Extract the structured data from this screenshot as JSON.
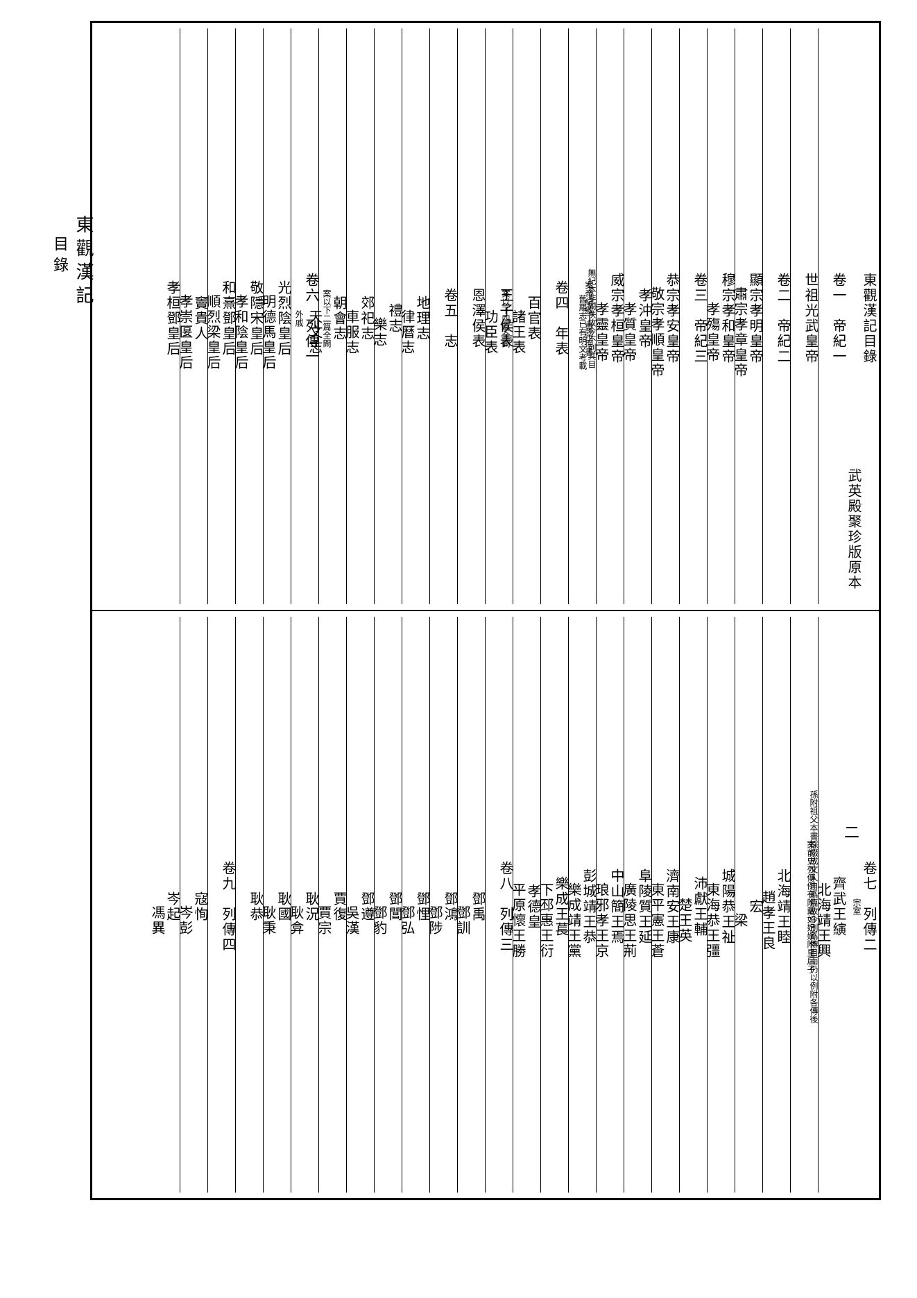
{
  "side_title_main": "東觀漢記",
  "side_title_sub": "目錄",
  "page_number": "二",
  "upper": {
    "columns": [
      {
        "cells": [
          {
            "t": "東觀漢記目錄",
            "cls": ""
          },
          {
            "t": "武英殿聚珍版原本",
            "cls": "edition"
          }
        ]
      },
      {
        "cells": [
          {
            "t": "卷一　帝紀一",
            "cls": ""
          }
        ]
      },
      {
        "cells": [
          {
            "t": "世祖光武皇帝",
            "cls": ""
          }
        ]
      },
      {
        "cells": [
          {
            "t": "卷二　帝紀二",
            "cls": ""
          }
        ]
      },
      {
        "cells": [
          {
            "t": "顯宗孝明皇帝",
            "cls": ""
          },
          {
            "t": "肅宗孝章皇帝",
            "cls": "second"
          }
        ]
      },
      {
        "cells": [
          {
            "t": "穆宗孝和皇帝",
            "cls": ""
          },
          {
            "t": "孝殤皇帝",
            "cls": "second"
          }
        ]
      },
      {
        "cells": [
          {
            "t": "卷三　帝紀三",
            "cls": ""
          }
        ]
      },
      {
        "cells": [
          {
            "t": "恭宗孝安皇帝",
            "cls": ""
          },
          {
            "t": "敬宗孝順皇帝",
            "cls": "second"
          }
        ]
      },
      {
        "cells": [
          {
            "t": "孝沖皇帝",
            "cls": ""
          },
          {
            "t": "孝質皇帝",
            "cls": "second"
          }
        ]
      },
      {
        "cells": [
          {
            "t": "威宗孝桓皇帝",
            "cls": ""
          },
          {
            "t": "孝靈皇帝",
            "cls": "second"
          },
          {
            "t": "案帝紀敘丁靈帝而書",
            "cls": "small"
          }
        ]
      },
      {
        "cells": [
          {
            "t": "無紀本非闕佚故今不列其目",
            "cls": "small"
          },
          {
            "t": "舊羅志已有明文考載",
            "cls": "small second"
          }
        ]
      },
      {
        "cells": [
          {
            "t": "卷四　年表",
            "cls": ""
          }
        ]
      },
      {
        "cells": [
          {
            "t": "百官表",
            "cls": ""
          },
          {
            "t": "諸王表",
            "cls": "second"
          },
          {
            "t": "案以下四篇全闕",
            "cls": "small"
          }
        ]
      },
      {
        "cells": [
          {
            "t": "王子侯表",
            "cls": ""
          },
          {
            "t": "功臣表",
            "cls": "second"
          }
        ]
      },
      {
        "cells": [
          {
            "t": "恩澤侯表",
            "cls": ""
          }
        ]
      },
      {
        "cells": [
          {
            "t": "卷五　志",
            "cls": ""
          }
        ]
      },
      {
        "cells": [
          {
            "t": "地理志",
            "cls": ""
          },
          {
            "t": "律曆志",
            "cls": "second"
          }
        ]
      },
      {
        "cells": [
          {
            "t": "禮志",
            "cls": ""
          },
          {
            "t": "樂志",
            "cls": "second"
          }
        ]
      },
      {
        "cells": [
          {
            "t": "郊祀志",
            "cls": ""
          },
          {
            "t": "車服志",
            "cls": "second"
          }
        ]
      },
      {
        "cells": [
          {
            "t": "朝會志",
            "cls": ""
          },
          {
            "t": "案以下二篇全闕",
            "cls": "small"
          },
          {
            "t": "天文志",
            "cls": "second"
          }
        ]
      },
      {
        "cells": [
          {
            "t": "卷六　列傳一",
            "cls": ""
          },
          {
            "t": "外戚",
            "cls": "small"
          }
        ]
      },
      {
        "cells": [
          {
            "t": "光烈陰皇后",
            "cls": ""
          },
          {
            "t": "明德馬皇后",
            "cls": "second"
          }
        ]
      },
      {
        "cells": [
          {
            "t": "敬隱宋皇后",
            "cls": ""
          },
          {
            "t": "孝和陰皇后",
            "cls": "second"
          }
        ]
      },
      {
        "cells": [
          {
            "t": "和熹鄧皇后",
            "cls": ""
          },
          {
            "t": "順烈梁皇后",
            "cls": "second"
          }
        ]
      },
      {
        "cells": [
          {
            "t": "竇貴人",
            "cls": ""
          },
          {
            "t": "孝崇匽皇后",
            "cls": "second"
          }
        ]
      },
      {
        "cells": [
          {
            "t": "孝桓鄧皇后",
            "cls": ""
          }
        ]
      }
    ]
  },
  "lower": {
    "columns": [
      {
        "cells": [
          {
            "t": "卷七　列傳二",
            "cls": ""
          },
          {
            "t": "宗室",
            "cls": "small"
          }
        ]
      },
      {
        "cells": [
          {
            "t": "齊武王縯",
            "cls": ""
          },
          {
            "t": "北海靖王興",
            "cls": "second"
          },
          {
            "t": "案前史列傳例有附戴如妃嬪附皇后子",
            "cls": "small"
          }
        ]
      },
      {
        "cells": [
          {
            "t": "孫附祖父本書採綴成文人自爲篇故今別爲傳目而仍以例附各傳後",
            "cls": "small"
          }
        ]
      },
      {
        "cells": [
          {
            "t": "北海靖王睦",
            "cls": ""
          },
          {
            "t": "趙孝王良",
            "cls": "second"
          }
        ]
      },
      {
        "cells": [
          {
            "t": "宏",
            "cls": ""
          },
          {
            "t": "梁",
            "cls": "second"
          }
        ]
      },
      {
        "cells": [
          {
            "t": "城陽恭王祉",
            "cls": ""
          },
          {
            "t": "東海恭王彊",
            "cls": "second"
          }
        ]
      },
      {
        "cells": [
          {
            "t": "沛獻王輔",
            "cls": ""
          },
          {
            "t": "楚王英",
            "cls": "second"
          }
        ]
      },
      {
        "cells": [
          {
            "t": "濟南安王康",
            "cls": ""
          },
          {
            "t": "東平憲王蒼",
            "cls": "second"
          }
        ]
      },
      {
        "cells": [
          {
            "t": "阜陵質王延",
            "cls": ""
          },
          {
            "t": "廣陵思王荊",
            "cls": "second"
          }
        ]
      },
      {
        "cells": [
          {
            "t": "中山簡王焉",
            "cls": ""
          },
          {
            "t": "琅邪孝王京",
            "cls": "second"
          }
        ]
      },
      {
        "cells": [
          {
            "t": "彭城靖王恭",
            "cls": ""
          },
          {
            "t": "樂成靖王黨",
            "cls": "second"
          }
        ]
      },
      {
        "cells": [
          {
            "t": "樂成王萇",
            "cls": ""
          },
          {
            "t": "下邳惠王衍",
            "cls": "second"
          }
        ]
      },
      {
        "cells": [
          {
            "t": "孝德皇",
            "cls": ""
          },
          {
            "t": "平原懷王勝",
            "cls": "second"
          }
        ]
      },
      {
        "cells": [
          {
            "t": "卷八　列傳三",
            "cls": ""
          }
        ]
      },
      {
        "cells": [
          {
            "t": "鄧禹",
            "cls": ""
          },
          {
            "t": "鄧訓",
            "cls": "second"
          }
        ]
      },
      {
        "cells": [
          {
            "t": "鄧鴻",
            "cls": ""
          },
          {
            "t": "鄧陟",
            "cls": "second"
          }
        ]
      },
      {
        "cells": [
          {
            "t": "鄧悝",
            "cls": ""
          },
          {
            "t": "鄧弘",
            "cls": "second"
          }
        ]
      },
      {
        "cells": [
          {
            "t": "鄧閶",
            "cls": ""
          },
          {
            "t": "鄧豹",
            "cls": "second"
          }
        ]
      },
      {
        "cells": [
          {
            "t": "鄧遵",
            "cls": ""
          },
          {
            "t": "吳漢",
            "cls": "second"
          }
        ]
      },
      {
        "cells": [
          {
            "t": "賈復",
            "cls": ""
          },
          {
            "t": "賈宗",
            "cls": "second"
          }
        ]
      },
      {
        "cells": [
          {
            "t": "耿況",
            "cls": ""
          },
          {
            "t": "耿弇",
            "cls": "second"
          }
        ]
      },
      {
        "cells": [
          {
            "t": "耿國",
            "cls": ""
          },
          {
            "t": "耿秉",
            "cls": "second"
          }
        ]
      },
      {
        "cells": [
          {
            "t": "耿恭",
            "cls": ""
          }
        ]
      },
      {
        "cells": [
          {
            "t": "卷九　列傳四",
            "cls": ""
          }
        ]
      },
      {
        "cells": [
          {
            "t": "寇恂",
            "cls": ""
          },
          {
            "t": "岑彭",
            "cls": "second"
          }
        ]
      },
      {
        "cells": [
          {
            "t": "岑起",
            "cls": ""
          },
          {
            "t": "馮異",
            "cls": "second"
          }
        ]
      }
    ]
  }
}
